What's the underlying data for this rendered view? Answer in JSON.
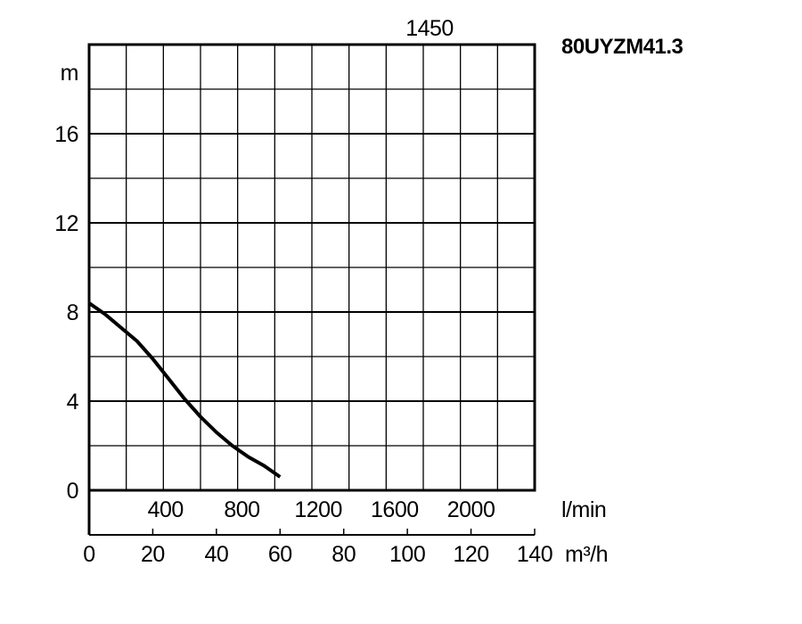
{
  "chart_data": {
    "type": "line",
    "title": "80UYZM41.3",
    "speed_label": "1450",
    "ylabel": "m",
    "xlabel_lmin": "l/min",
    "xlabel_m3h": "m³/h",
    "ylim": [
      0,
      20
    ],
    "xlim_m3h": [
      0,
      140
    ],
    "yticks": [
      0,
      4,
      8,
      12,
      16
    ],
    "xticks_m3h": [
      0,
      20,
      40,
      60,
      80,
      100,
      120,
      140
    ],
    "xticks_lmin": [
      400,
      800,
      1200,
      1600,
      2000
    ],
    "grid": true,
    "series": [
      {
        "x": [
          0,
          5,
          10,
          15,
          20,
          25,
          30,
          35,
          40,
          45,
          50,
          55,
          60
        ],
        "y": [
          8.4,
          7.9,
          7.3,
          6.7,
          5.9,
          5.0,
          4.1,
          3.3,
          2.6,
          2.0,
          1.5,
          1.1,
          0.6
        ]
      }
    ]
  }
}
